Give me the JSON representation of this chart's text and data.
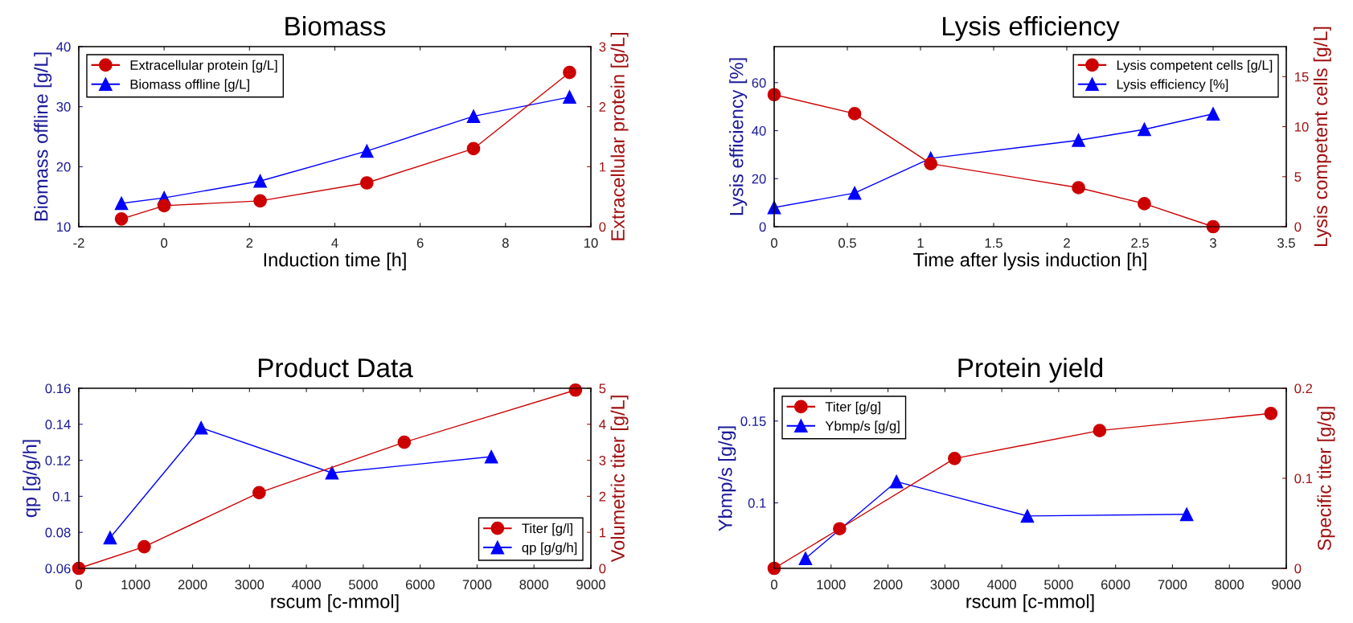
{
  "chart_data": [
    {
      "type": "line",
      "title": "Biomass",
      "xlabel": "Induction time [h]",
      "ylabel": "Biomass offline [g/L]",
      "y2label": "Extracellular protein [g/L]",
      "xlim": [
        -2,
        10
      ],
      "xticks": [
        -2,
        0,
        2,
        4,
        6,
        8,
        10
      ],
      "ylim": [
        10,
        40
      ],
      "yticks": [
        10,
        20,
        30,
        40
      ],
      "y2lim": [
        0,
        3
      ],
      "y2ticks": [
        0,
        1,
        2,
        3
      ],
      "legend": "top left",
      "grid": false,
      "series": [
        {
          "name": "Extracellular protein [g/L]",
          "axis": "y2",
          "marker": "circle",
          "color": "#cc0000",
          "x": [
            -1,
            0,
            2.25,
            4.75,
            7.25,
            9.5
          ],
          "values": [
            0.13,
            0.35,
            0.43,
            0.73,
            1.3,
            2.57
          ]
        },
        {
          "name": "Biomass offline [g/L]",
          "axis": "y",
          "marker": "triangle",
          "color": "#0000ff",
          "x": [
            -1,
            0,
            2.25,
            4.75,
            7.25,
            9.5
          ],
          "values": [
            13.9,
            14.8,
            17.6,
            22.6,
            28.4,
            31.6
          ]
        }
      ]
    },
    {
      "type": "line",
      "title": "Lysis efficiency",
      "xlabel": "Time after lysis induction [h]",
      "ylabel": "Lysis efficiency [%]",
      "y2label": "Lysis competent cells [g/L]",
      "xlim": [
        0,
        3.5
      ],
      "xticks": [
        0,
        0.5,
        1,
        1.5,
        2,
        2.5,
        3,
        3.5
      ],
      "ylim": [
        0,
        75
      ],
      "yticks": [
        0,
        20,
        40,
        60
      ],
      "y2lim": [
        0,
        18
      ],
      "y2ticks": [
        0,
        5,
        10,
        15
      ],
      "legend": "top right",
      "grid": false,
      "series": [
        {
          "name": "Lysis competent cells [g/L]",
          "axis": "y2",
          "marker": "circle",
          "color": "#cc0000",
          "x": [
            0,
            0.55,
            1.07,
            2.08,
            2.53,
            3
          ],
          "values": [
            13.2,
            11.3,
            6.3,
            3.9,
            2.3,
            0
          ]
        },
        {
          "name": "Lysis efficiency [%]",
          "axis": "y",
          "marker": "triangle",
          "color": "#0000ff",
          "x": [
            0,
            0.55,
            1.07,
            2.08,
            2.53,
            3
          ],
          "values": [
            8,
            14,
            28.5,
            36,
            40.5,
            47
          ]
        }
      ]
    },
    {
      "type": "line",
      "title": "Product Data",
      "xlabel": "rscum [c-mmol]",
      "ylabel": "qp [g/g/h]",
      "y2label": "Volumetric titer [g/L]",
      "xlim": [
        0,
        9000
      ],
      "xticks": [
        0,
        1000,
        2000,
        3000,
        4000,
        5000,
        6000,
        7000,
        8000,
        9000
      ],
      "ylim": [
        0.06,
        0.16
      ],
      "yticks": [
        {
          "value": 0.06,
          "label": "0.06"
        },
        {
          "value": 0.08,
          "label": "0.08"
        },
        {
          "value": 0.1,
          "label": "0.1"
        },
        {
          "value": 0.12,
          "label": "0.12"
        },
        {
          "value": 0.14,
          "label": "0.14"
        },
        {
          "value": 0.16,
          "label": "0.16"
        }
      ],
      "y2lim": [
        0,
        5
      ],
      "y2ticks": [
        0,
        1,
        2,
        3,
        4,
        5
      ],
      "legend": "bottom right",
      "grid": false,
      "series": [
        {
          "name": "Titer [g/l]",
          "axis": "y2",
          "marker": "circle",
          "color": "#cc0000",
          "x": [
            0,
            1150,
            3170,
            5720,
            8730
          ],
          "values": [
            0,
            0.6,
            2.1,
            3.5,
            4.95
          ]
        },
        {
          "name": "qp [g/g/h]",
          "axis": "y",
          "marker": "triangle",
          "color": "#0000ff",
          "x": [
            550,
            2150,
            4450,
            7250
          ],
          "values": [
            0.077,
            0.138,
            0.113,
            0.122
          ]
        }
      ]
    },
    {
      "type": "line",
      "title": "Protein yield",
      "xlabel": "rscum [c-mmol]",
      "ylabel": "Ybmp/s [g/g]",
      "y2label": "Specific titer [g/g]",
      "xlim": [
        0,
        9000
      ],
      "xticks": [
        0,
        1000,
        2000,
        3000,
        4000,
        5000,
        6000,
        7000,
        8000,
        9000
      ],
      "ylim": [
        0.06,
        0.17
      ],
      "yticks": [
        0.1,
        0.15
      ],
      "y2lim": [
        0,
        0.2
      ],
      "y2ticks": [
        0,
        0.1,
        0.2
      ],
      "legend": "top left",
      "grid": false,
      "series": [
        {
          "name": "Titer [g/g]",
          "axis": "y2",
          "marker": "circle",
          "color": "#cc0000",
          "x": [
            0,
            1150,
            3170,
            5720,
            8730
          ],
          "values": [
            0,
            0.044,
            0.122,
            0.153,
            0.172
          ]
        },
        {
          "name": "Ybmp/s [g/g]",
          "axis": "y",
          "marker": "triangle",
          "color": "#0000ff",
          "x": [
            550,
            2150,
            4450,
            7250
          ],
          "values": [
            0.066,
            0.113,
            0.092,
            0.093
          ]
        }
      ]
    }
  ]
}
